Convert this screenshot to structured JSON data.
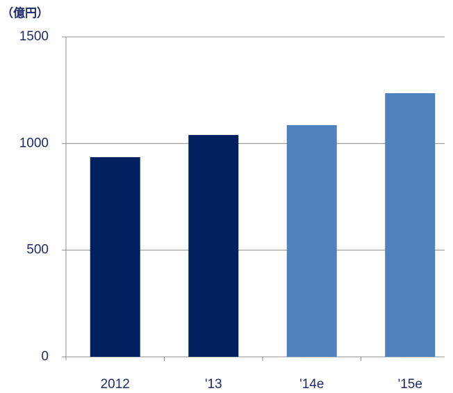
{
  "chart_data": {
    "type": "bar",
    "unit_label": "（億円）",
    "categories": [
      "2012",
      "'13",
      "'14e",
      "'15e"
    ],
    "values": [
      936,
      1040,
      1086,
      1236
    ],
    "colors": [
      "#002060",
      "#002060",
      "#4f81bd",
      "#4f81bd"
    ],
    "ylim": [
      0,
      1500
    ],
    "yticks": [
      0,
      500,
      1000,
      1500
    ],
    "grid": true
  }
}
